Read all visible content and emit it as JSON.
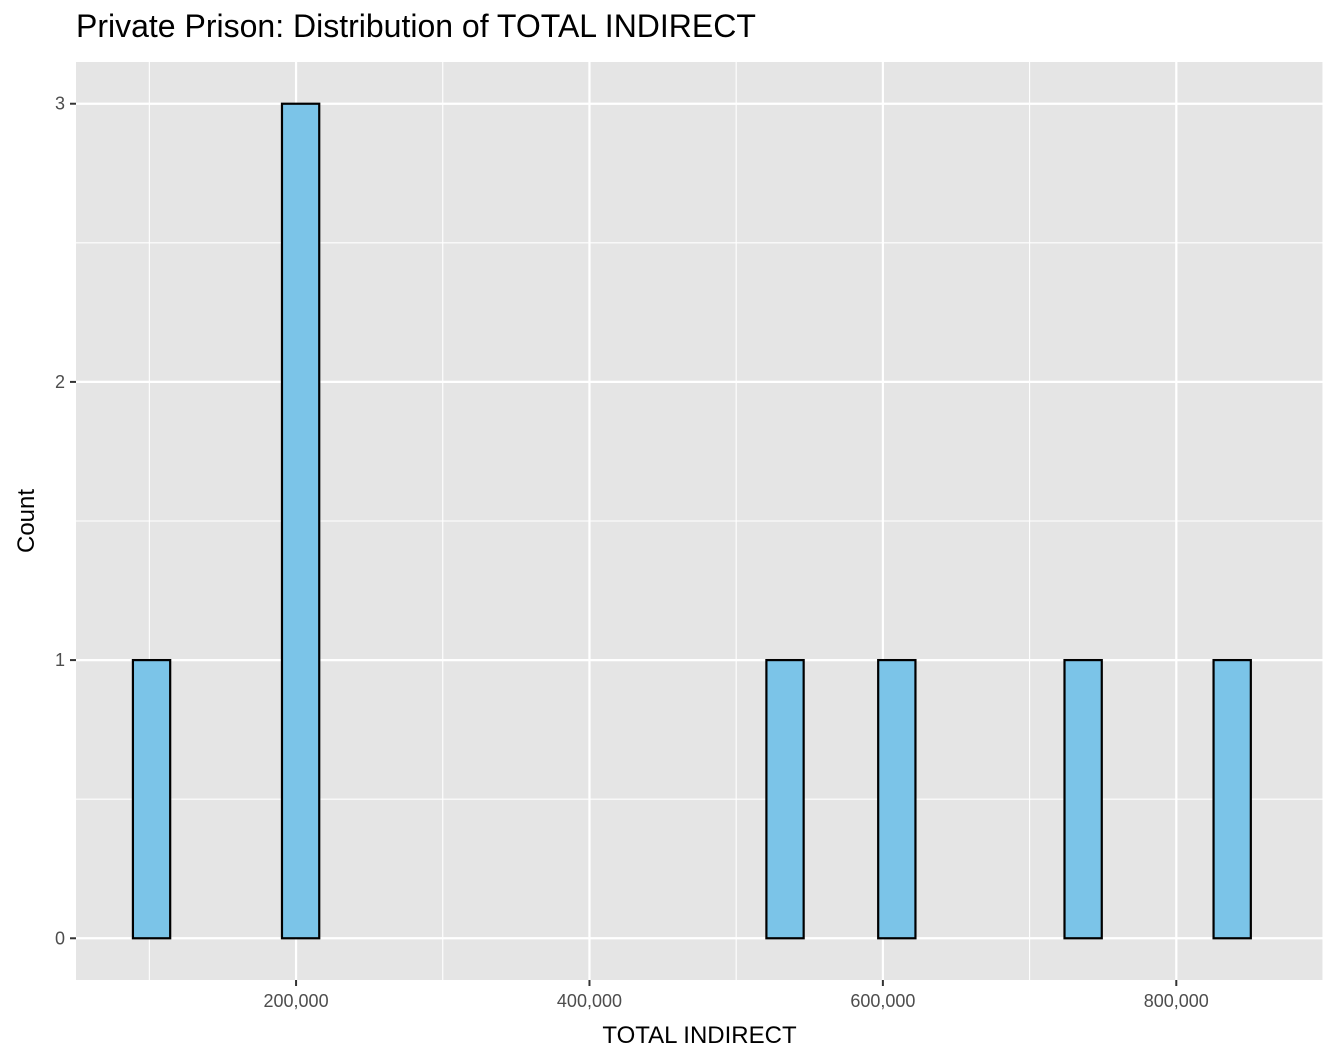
{
  "chart_data": {
    "type": "bar",
    "title": "Private Prison: Distribution of TOTAL INDIRECT",
    "xlabel": "TOTAL INDIRECT",
    "ylabel": "Count",
    "xlim": [
      50000,
      900000
    ],
    "ylim": [
      -0.15,
      3.15
    ],
    "x_ticks": [
      200000,
      400000,
      600000,
      800000
    ],
    "x_tick_labels": [
      "200,000",
      "400,000",
      "600,000",
      "800,000"
    ],
    "y_ticks": [
      0,
      1,
      2,
      3
    ],
    "y_tick_labels": [
      "0",
      "1",
      "2",
      "3"
    ],
    "bin_width": 25400,
    "bins": [
      {
        "x0": 88800,
        "x1": 114200,
        "count": 1
      },
      {
        "x0": 114200,
        "x1": 139600,
        "count": 0
      },
      {
        "x0": 139600,
        "x1": 165000,
        "count": 0
      },
      {
        "x0": 165000,
        "x1": 190400,
        "count": 0
      },
      {
        "x0": 190400,
        "x1": 215800,
        "count": 3
      },
      {
        "x0": 215800,
        "x1": 241200,
        "count": 0
      },
      {
        "x0": 241200,
        "x1": 266600,
        "count": 0
      },
      {
        "x0": 266600,
        "x1": 292000,
        "count": 0
      },
      {
        "x0": 292000,
        "x1": 317400,
        "count": 0
      },
      {
        "x0": 317400,
        "x1": 342800,
        "count": 0
      },
      {
        "x0": 342800,
        "x1": 368200,
        "count": 0
      },
      {
        "x0": 368200,
        "x1": 393600,
        "count": 0
      },
      {
        "x0": 393600,
        "x1": 419000,
        "count": 0
      },
      {
        "x0": 419000,
        "x1": 444400,
        "count": 0
      },
      {
        "x0": 444400,
        "x1": 469800,
        "count": 0
      },
      {
        "x0": 469800,
        "x1": 495200,
        "count": 0
      },
      {
        "x0": 495200,
        "x1": 520600,
        "count": 0
      },
      {
        "x0": 520600,
        "x1": 546000,
        "count": 1
      },
      {
        "x0": 546000,
        "x1": 571400,
        "count": 0
      },
      {
        "x0": 571400,
        "x1": 596800,
        "count": 0
      },
      {
        "x0": 596800,
        "x1": 622200,
        "count": 1
      },
      {
        "x0": 622200,
        "x1": 647600,
        "count": 0
      },
      {
        "x0": 647600,
        "x1": 673000,
        "count": 0
      },
      {
        "x0": 673000,
        "x1": 698400,
        "count": 0
      },
      {
        "x0": 698400,
        "x1": 723800,
        "count": 0
      },
      {
        "x0": 723800,
        "x1": 749200,
        "count": 1
      },
      {
        "x0": 749200,
        "x1": 774600,
        "count": 0
      },
      {
        "x0": 774600,
        "x1": 800000,
        "count": 0
      },
      {
        "x0": 800000,
        "x1": 825400,
        "count": 0
      },
      {
        "x0": 825400,
        "x1": 850800,
        "count": 1
      }
    ],
    "grid": true,
    "colors": {
      "panel": "#e5e5e5",
      "grid": "#ffffff",
      "bar_fill": "#7bc4e8",
      "bar_stroke": "#000000"
    }
  }
}
